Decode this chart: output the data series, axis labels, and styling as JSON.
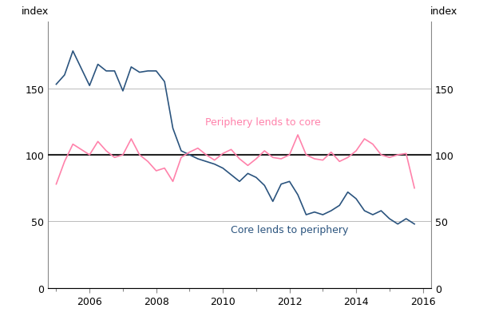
{
  "ylabel_left": "index",
  "ylabel_right": "index",
  "ylim": [
    0,
    200
  ],
  "yticks": [
    0,
    50,
    100,
    150
  ],
  "xlim": [
    2004.75,
    2016.25
  ],
  "xticks": [
    2006,
    2008,
    2010,
    2012,
    2014,
    2016
  ],
  "hline_y": 100,
  "core_color": "#2B547E",
  "periphery_color": "#FF82AB",
  "hline_color": "#222222",
  "grid_color": "#BBBBBB",
  "core_label": "Core lends to periphery",
  "periphery_label": "Periphery lends to core",
  "core_x": [
    2005.0,
    2005.25,
    2005.5,
    2005.75,
    2006.0,
    2006.25,
    2006.5,
    2006.75,
    2007.0,
    2007.25,
    2007.5,
    2007.75,
    2008.0,
    2008.25,
    2008.5,
    2008.75,
    2009.0,
    2009.25,
    2009.5,
    2009.75,
    2010.0,
    2010.25,
    2010.5,
    2010.75,
    2011.0,
    2011.25,
    2011.5,
    2011.75,
    2012.0,
    2012.25,
    2012.5,
    2012.75,
    2013.0,
    2013.25,
    2013.5,
    2013.75,
    2014.0,
    2014.25,
    2014.5,
    2014.75,
    2015.0,
    2015.25,
    2015.5,
    2015.75
  ],
  "core_y": [
    153,
    160,
    178,
    165,
    152,
    168,
    163,
    163,
    148,
    166,
    162,
    163,
    163,
    155,
    120,
    103,
    100,
    97,
    95,
    93,
    90,
    85,
    80,
    86,
    83,
    77,
    65,
    78,
    80,
    70,
    55,
    57,
    55,
    58,
    62,
    72,
    67,
    58,
    55,
    58,
    52,
    48,
    52,
    48
  ],
  "periphery_x": [
    2005.0,
    2005.25,
    2005.5,
    2005.75,
    2006.0,
    2006.25,
    2006.5,
    2006.75,
    2007.0,
    2007.25,
    2007.5,
    2007.75,
    2008.0,
    2008.25,
    2008.5,
    2008.75,
    2009.0,
    2009.25,
    2009.5,
    2009.75,
    2010.0,
    2010.25,
    2010.5,
    2010.75,
    2011.0,
    2011.25,
    2011.5,
    2011.75,
    2012.0,
    2012.25,
    2012.5,
    2012.75,
    2013.0,
    2013.25,
    2013.5,
    2013.75,
    2014.0,
    2014.25,
    2014.5,
    2014.75,
    2015.0,
    2015.25,
    2015.5,
    2015.75
  ],
  "periphery_y": [
    78,
    95,
    108,
    104,
    100,
    110,
    103,
    98,
    100,
    112,
    100,
    95,
    88,
    90,
    80,
    98,
    102,
    105,
    100,
    96,
    101,
    104,
    97,
    92,
    97,
    103,
    98,
    97,
    100,
    115,
    100,
    97,
    96,
    102,
    95,
    98,
    103,
    112,
    108,
    100,
    98,
    100,
    101,
    75
  ]
}
